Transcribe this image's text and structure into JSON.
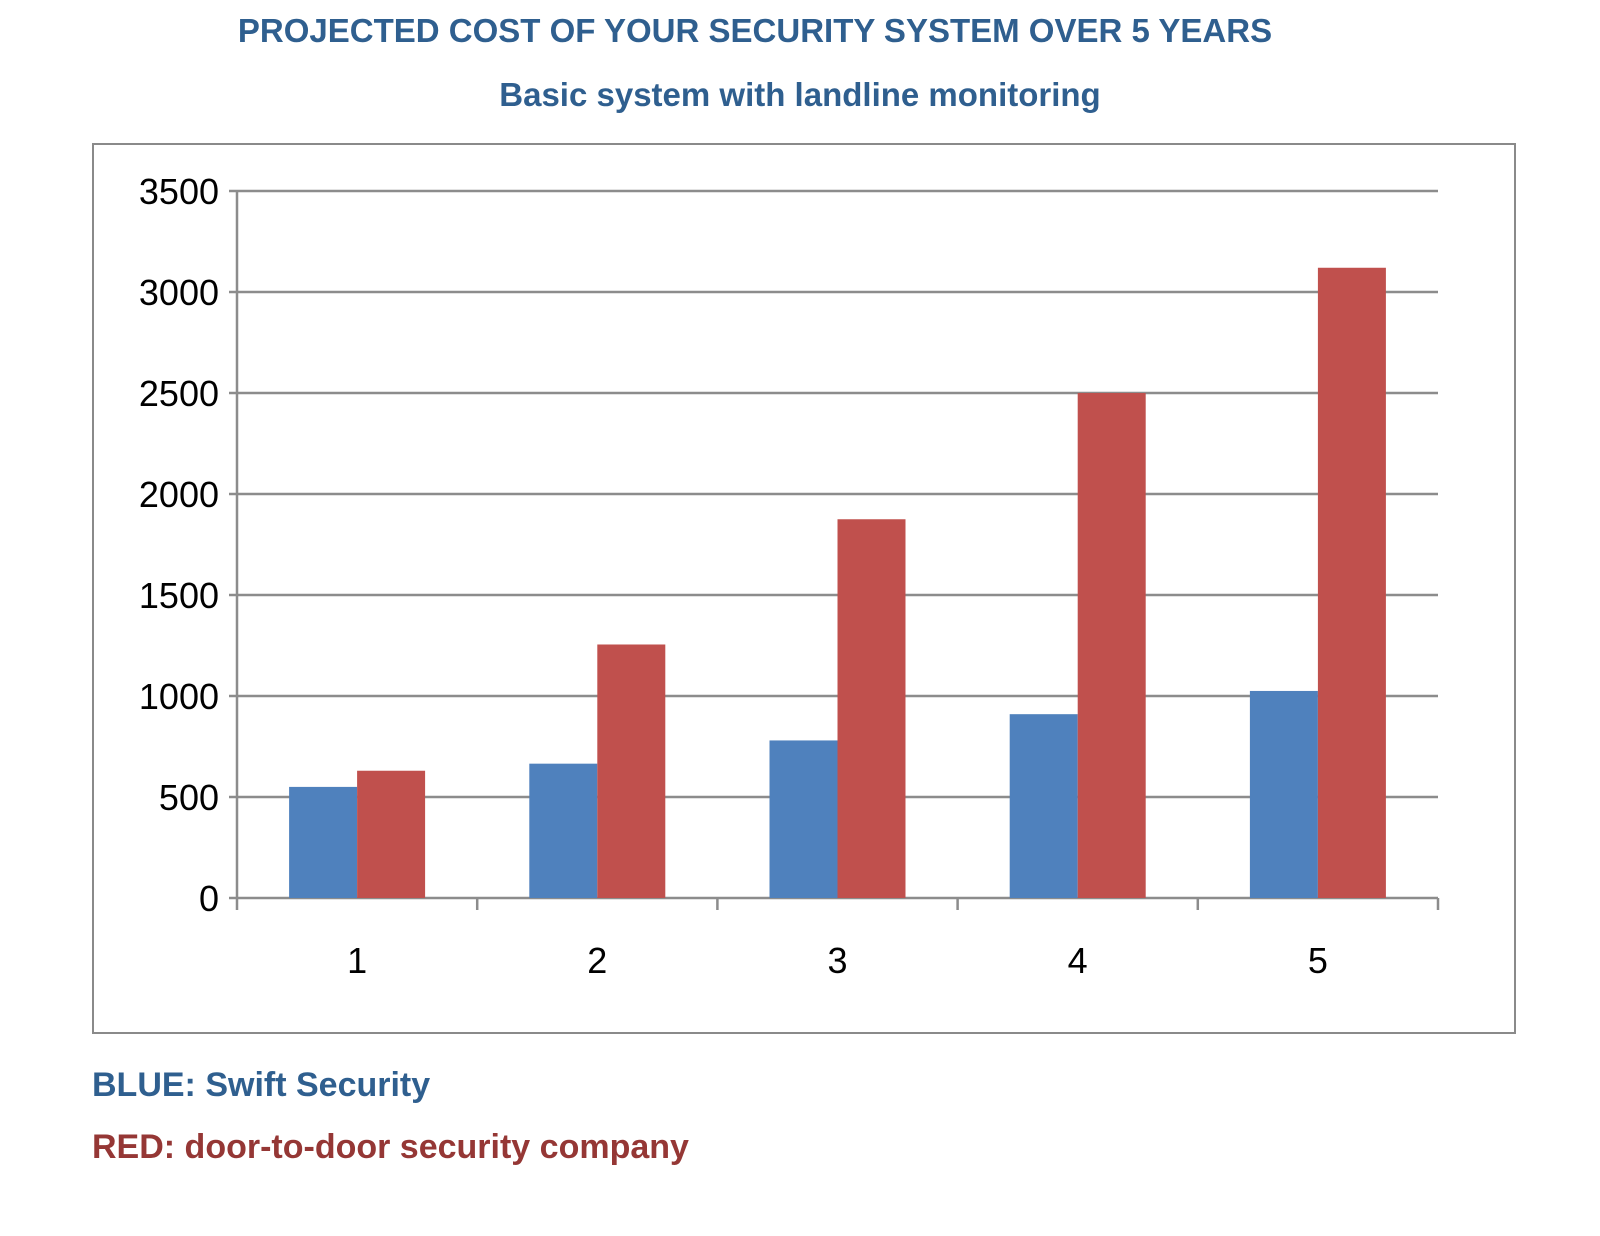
{
  "chart_data": {
    "type": "bar",
    "title": "PROJECTED COST OF YOUR SECURITY SYSTEM OVER 5 YEARS",
    "subtitle": "Basic system with landline monitoring",
    "xlabel": "",
    "ylabel": "",
    "categories": [
      "1",
      "2",
      "3",
      "4",
      "5"
    ],
    "series": [
      {
        "color": "#4f81bd",
        "values": [
          550,
          665,
          780,
          910,
          1025
        ]
      },
      {
        "color": "#c0504d",
        "values": [
          630,
          1255,
          1875,
          2500,
          3120
        ]
      }
    ],
    "ylim": [
      0,
      3500
    ],
    "yticks": [
      0,
      500,
      1000,
      1500,
      2000,
      2500,
      3000,
      3500
    ],
    "grid": true,
    "legend_notes": [
      {
        "text": "BLUE: Swift Security",
        "color": "#2f5f8f"
      },
      {
        "text": "RED: door-to-door security company",
        "color": "#953735"
      }
    ]
  }
}
